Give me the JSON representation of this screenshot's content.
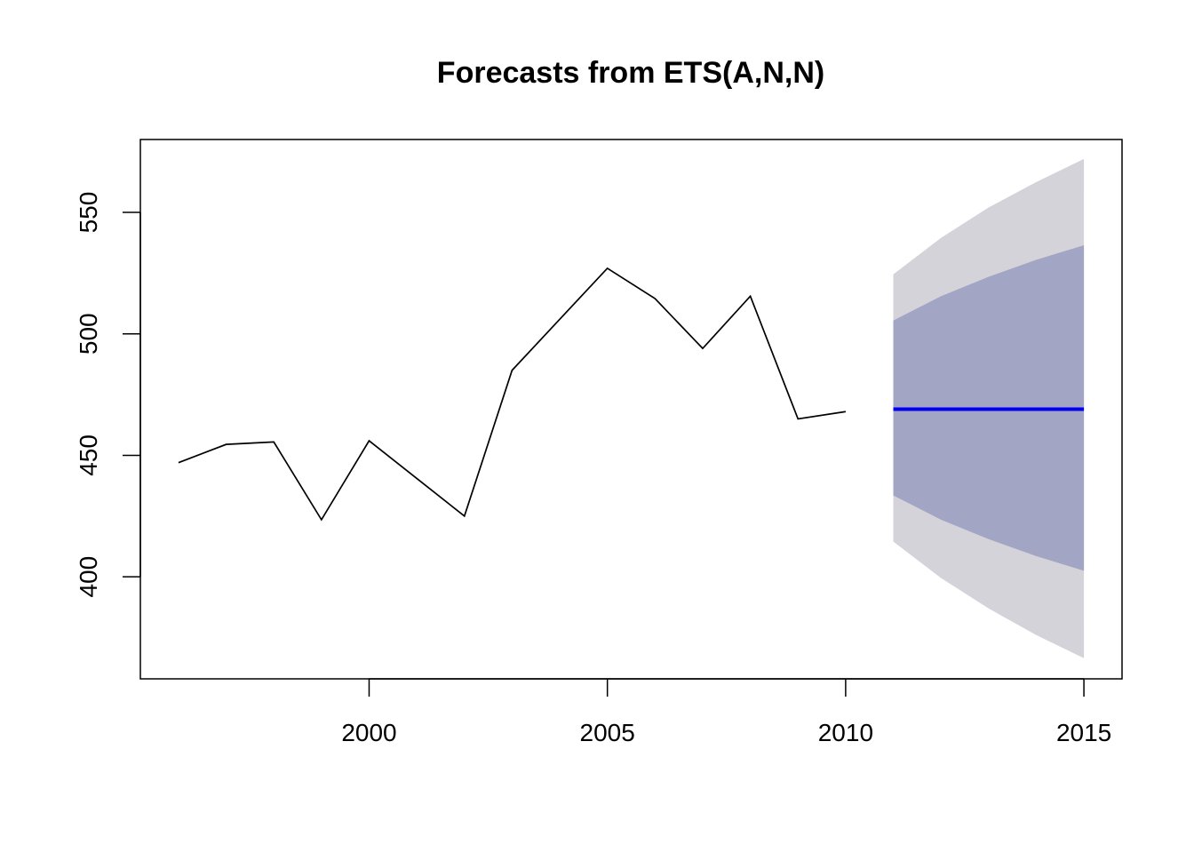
{
  "chart_data": {
    "type": "line",
    "title": "Forecasts from ETS(A,N,N)",
    "xlabel": "",
    "ylabel": "",
    "xlim": [
      1995.2,
      2015.8
    ],
    "ylim": [
      358,
      580
    ],
    "x_ticks": [
      2000,
      2005,
      2010,
      2015
    ],
    "x_tick_labels": [
      "2000",
      "2005",
      "2010",
      "2015"
    ],
    "y_ticks": [
      400,
      450,
      500,
      550
    ],
    "y_tick_labels": [
      "400",
      "450",
      "500",
      "550"
    ],
    "grid": false,
    "series": [
      {
        "role": "observed",
        "x": [
          1996,
          1997,
          1998,
          1999,
          2000,
          2001,
          2002,
          2003,
          2004,
          2005,
          2006,
          2007,
          2008,
          2009,
          2010
        ],
        "y": [
          447,
          454.5,
          455.5,
          423.5,
          456,
          440.5,
          425,
          485,
          506,
          527,
          514.5,
          494,
          515.5,
          465,
          468
        ]
      },
      {
        "role": "point-forecast",
        "x": [
          2011,
          2012,
          2013,
          2014,
          2015
        ],
        "y": [
          469,
          469,
          469,
          469,
          469
        ]
      }
    ],
    "intervals": [
      {
        "role": "outer-interval",
        "x": [
          2011,
          2012,
          2013,
          2014,
          2015
        ],
        "lower": [
          414.5,
          399.5,
          387,
          376,
          366.5
        ],
        "upper": [
          524.5,
          539.5,
          552,
          562.5,
          572
        ]
      },
      {
        "role": "inner-interval",
        "x": [
          2011,
          2012,
          2013,
          2014,
          2015
        ],
        "lower": [
          433.5,
          423.5,
          415.5,
          408.5,
          402.5
        ],
        "upper": [
          505.5,
          515.5,
          523.5,
          530.5,
          536.5
        ]
      }
    ],
    "colors": {
      "observed": "#000000",
      "forecast": "#0000ee",
      "outer_interval": "#d4d3da",
      "inner_interval": "#a3a5c5"
    }
  }
}
